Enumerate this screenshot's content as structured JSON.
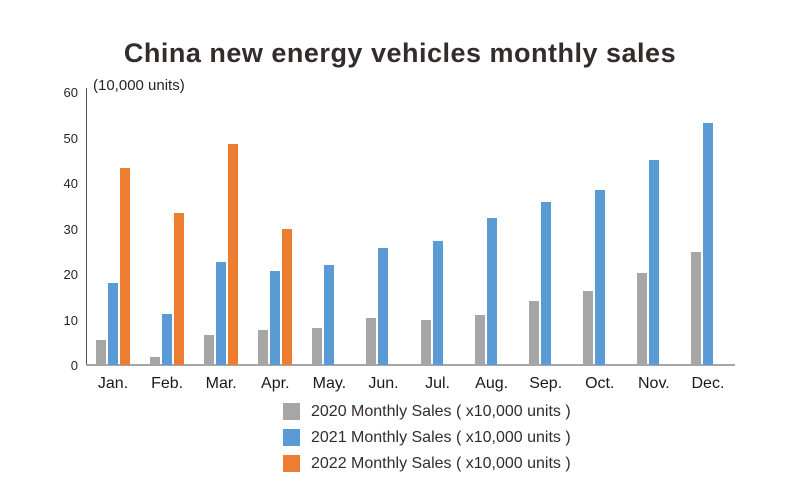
{
  "chart_data": {
    "type": "bar",
    "title": "China new energy vehicles monthly sales",
    "ylabel": "(10,000 units)",
    "xlabel": "",
    "ylim": [
      0,
      60
    ],
    "yticks": [
      0,
      10,
      20,
      30,
      40,
      50,
      60
    ],
    "grid": false,
    "legend_position": "bottom",
    "categories": [
      "Jan.",
      "Feb.",
      "Mar.",
      "Apr.",
      "May.",
      "Jun.",
      "Jul.",
      "Aug.",
      "Sep.",
      "Oct.",
      "Nov.",
      "Dec."
    ],
    "series": [
      {
        "name": "2020 Monthly Sales ( x10,000 units )",
        "year": "2020",
        "color": "#a6a6a6",
        "values": [
          5.4,
          1.7,
          6.7,
          7.6,
          8.2,
          10.4,
          9.9,
          11.0,
          14.1,
          16.2,
          20.2,
          24.9
        ]
      },
      {
        "name": "2021 Monthly Sales ( x10,000 units )",
        "year": "2021",
        "color": "#5b9bd5",
        "values": [
          18.0,
          11.1,
          22.6,
          20.6,
          21.9,
          25.7,
          27.2,
          32.2,
          35.8,
          38.5,
          45.0,
          53.2
        ]
      },
      {
        "name": "2022 Monthly Sales ( x10,000 units )",
        "year": "2022",
        "color": "#ed7d31",
        "values": [
          43.2,
          33.5,
          48.5,
          30.0,
          null,
          null,
          null,
          null,
          null,
          null,
          null,
          null
        ]
      }
    ]
  }
}
